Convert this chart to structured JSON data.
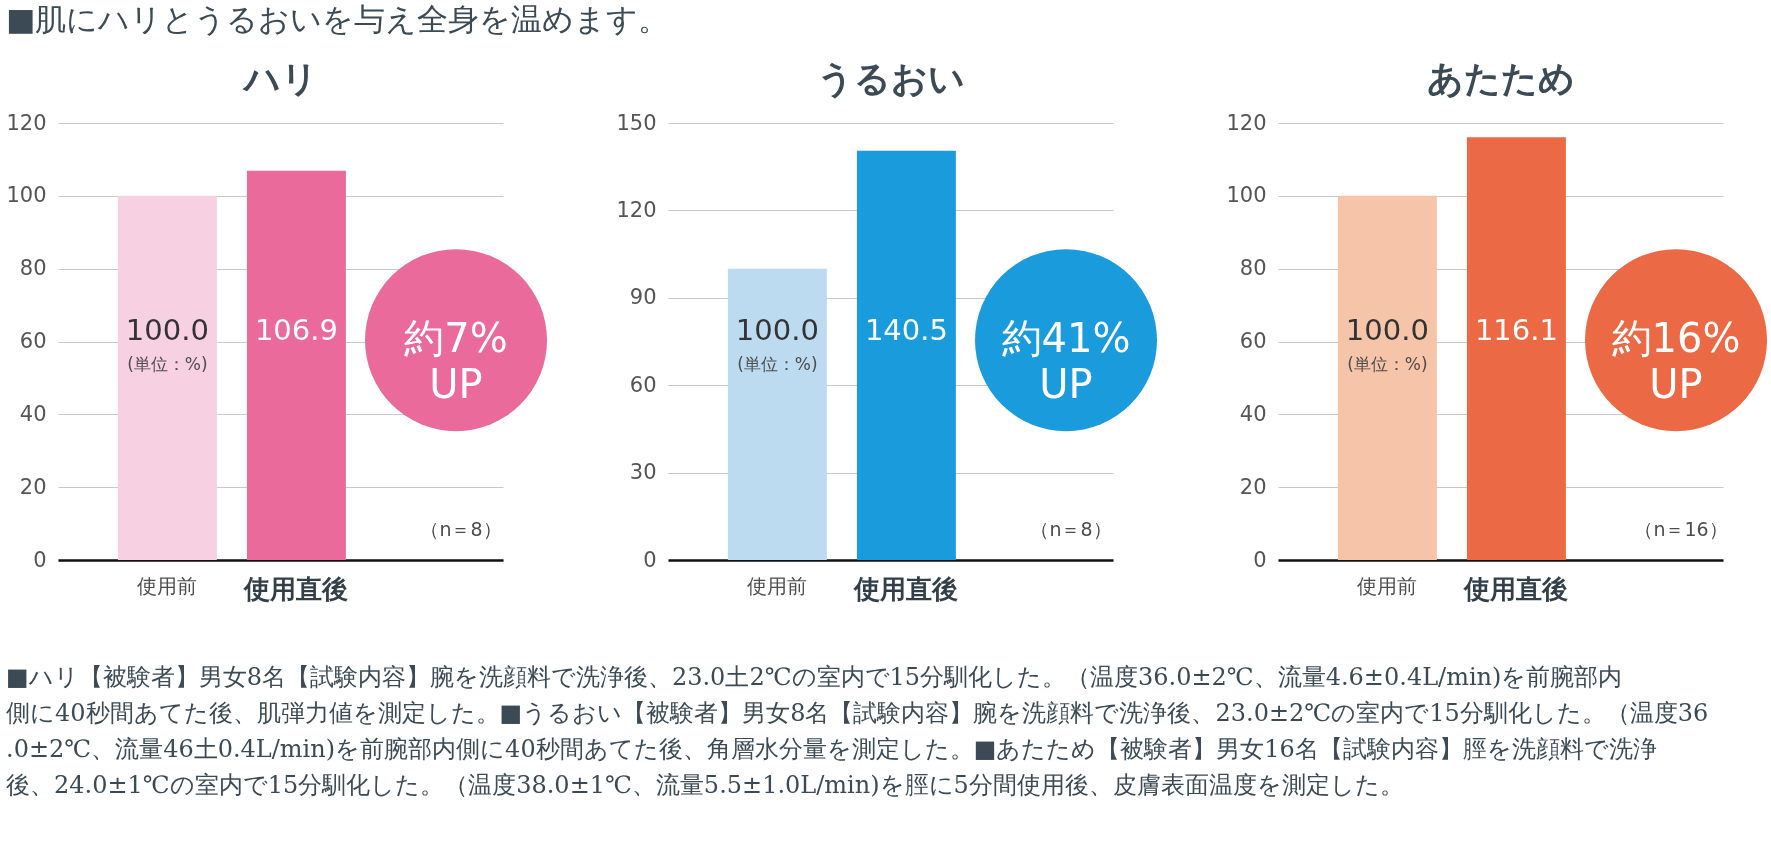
{
  "chart_data": [
    {
      "type": "other",
      "title": "■肌にハリとうるおいを与え全身を温めます。"
    },
    {
      "type": "bar",
      "title": "ハリ",
      "categories": [
        "使用前",
        "使用直後"
      ],
      "values": [
        100.0,
        106.9
      ],
      "colors": [
        "#f7d0e2",
        "#e96a9b"
      ],
      "value_labels": [
        "100.0",
        "106.9"
      ],
      "ylim": [
        0,
        120
      ],
      "yticks": [
        0,
        20,
        40,
        60,
        80,
        100,
        120
      ],
      "grid": "y",
      "annotations": [
        "(単位：%)",
        "約7%\nUP",
        "（n＝8）"
      ]
    },
    {
      "type": "bar",
      "title": "うるおい",
      "categories": [
        "使用前",
        "使用直後"
      ],
      "values": [
        100.0,
        140.5
      ],
      "colors": [
        "#bcdaf0",
        "#1a9cdc"
      ],
      "value_labels": [
        "100.0",
        "140.5"
      ],
      "ylim": [
        0,
        150
      ],
      "yticks": [
        0,
        30,
        60,
        90,
        120,
        150
      ],
      "grid": "y",
      "annotations": [
        "(単位：%)",
        "約41%\nUP",
        "（n＝8）"
      ]
    },
    {
      "type": "bar",
      "title": "あたため",
      "categories": [
        "使用前",
        "使用直後"
      ],
      "values": [
        100.0,
        116.1
      ],
      "colors": [
        "#f6c4a8",
        "#eb6a45"
      ],
      "value_labels": [
        "100.0",
        "116.1"
      ],
      "ylim": [
        0,
        120
      ],
      "yticks": [
        0,
        20,
        40,
        60,
        80,
        100,
        120
      ],
      "grid": "y",
      "annotations": [
        "(単位：%)",
        "約16%\nUP",
        "（n＝16）"
      ]
    },
    {
      "type": "other",
      "annotations": [
        "■ハリ【被験者】男女8名【試験内容】腕を洗顔料で洗浄後、23.0土2℃の室内で15分馴化した。（温度36.0±2℃、流量4.6±0.4L/min)を前腕部内側に40秒間あてた後、肌弾力値を測定した。■うるおい【被験者】男女8名【試験内容】腕を洗顔料で洗浄後、23.0±2℃の室内で15分馴化した。（温度36.0±2℃、流量46土0.4L/min)を前腕部内側に40秒間あてた後、角層水分量を測定した。■あたため【被験者】男女16名【試験内容】脛を洗顔料で洗浄後、24.0±1℃の室内で15分馴化した。（温度38.0±1℃、流量5.5±1.0L/min)を脛に5分間使用後、皮膚表面温度を測定した。"
      ]
    }
  ]
}
